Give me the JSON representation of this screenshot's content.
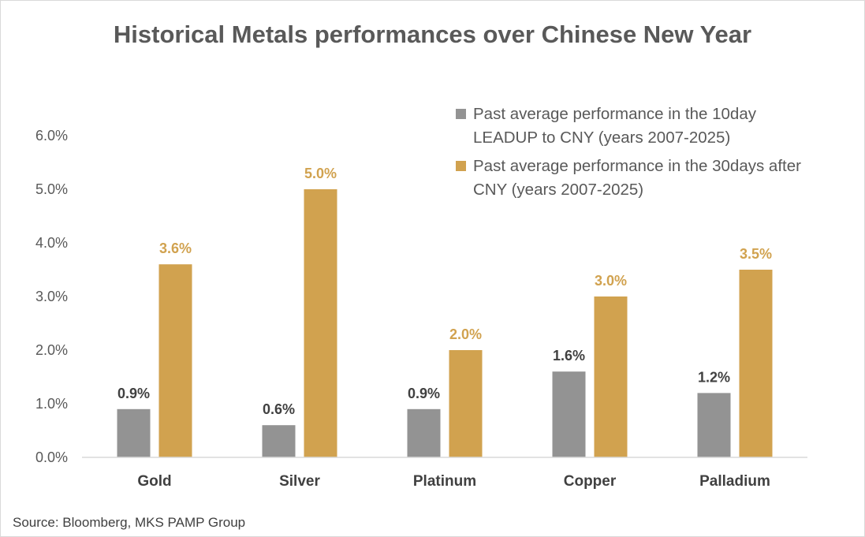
{
  "chart_data": {
    "type": "bar",
    "title": "Historical Metals performances over Chinese New Year",
    "categories": [
      "Gold",
      "Silver",
      "Platinum",
      "Copper",
      "Palladium"
    ],
    "series": [
      {
        "name": "Past average  performance in the 10day LEADUP to CNY (years 2007-2025)",
        "color": "#939393",
        "label_color": "#404040",
        "values": [
          0.9,
          0.6,
          0.9,
          1.6,
          1.2
        ],
        "labels": [
          "0.9%",
          "0.6%",
          "0.9%",
          "1.6%",
          "1.2%"
        ]
      },
      {
        "name": "Past average performance in the 30days after CNY (years 2007-2025)",
        "color": "#D1A24F",
        "label_color": "#D1A24F",
        "values": [
          3.6,
          5.0,
          2.0,
          3.0,
          3.5
        ],
        "labels": [
          "3.6%",
          "5.0%",
          "2.0%",
          "3.0%",
          "3.5%"
        ]
      }
    ],
    "ylim": [
      0,
      6
    ],
    "yticks": [
      0,
      1,
      2,
      3,
      4,
      5,
      6
    ],
    "ytick_labels": [
      "0.0%",
      "1.0%",
      "2.0%",
      "3.0%",
      "4.0%",
      "5.0%",
      "6.0%"
    ],
    "xlabel": "",
    "ylabel": "",
    "grid": false,
    "legend_position": "top-right"
  },
  "source": "Source: Bloomberg, MKS PAMP Group"
}
